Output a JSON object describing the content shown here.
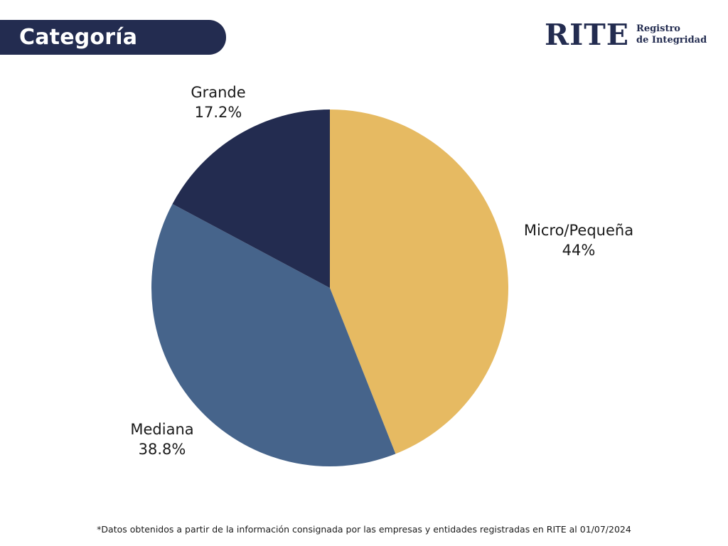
{
  "header": {
    "title": "Categoría"
  },
  "logo": {
    "main": "RITE",
    "line1": "Registro",
    "line2": "de Integridad"
  },
  "chart_data": {
    "type": "pie",
    "title": "Categoría",
    "slices": [
      {
        "label": "Micro/Pequeña",
        "value": 44,
        "value_label": "44%",
        "color": "#e6ba62"
      },
      {
        "label": "Mediana",
        "value": 38.8,
        "value_label": "38.8%",
        "color": "#46648b"
      },
      {
        "label": "Grande",
        "value": 17.2,
        "value_label": "17.2%",
        "color": "#232c50"
      }
    ],
    "start_angle": "top (12 o'clock)",
    "direction": "clockwise",
    "legend": "none (labels outside slices)"
  },
  "footnote": "*Datos obtenidos a partir de la información consignada por las empresas y entidades registradas en RITE al 01/07/2024"
}
